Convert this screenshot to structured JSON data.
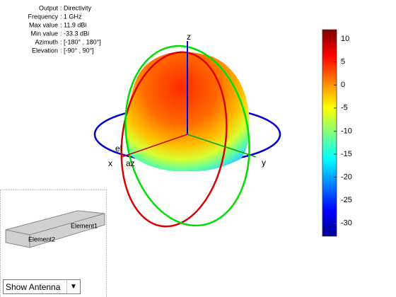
{
  "info": {
    "rows": [
      {
        "label": "Output",
        "value": ": Directivity"
      },
      {
        "label": "Frequency",
        "value": ": 1 GHz"
      },
      {
        "label": "Max value",
        "value": ": 11.9 dBi"
      },
      {
        "label": "Min value",
        "value": ": -33.3 dBi"
      },
      {
        "label": "Azimuth",
        "value": ": [-180° , 180°]"
      },
      {
        "label": "Elevation",
        "value": ": [-90° , 90°]"
      }
    ]
  },
  "axes": {
    "z": "z",
    "y": "y",
    "x": "x",
    "el": "el",
    "az": "az"
  },
  "colorbar": {
    "lim": [
      -32.8,
      12
    ],
    "ticks": [
      10,
      5,
      0,
      -5,
      -10,
      -15,
      -20,
      -25,
      -30
    ]
  },
  "antenna": {
    "labels": [
      "Element1",
      "Element2"
    ]
  },
  "dropdown": {
    "selected": "Show Antenna"
  }
}
